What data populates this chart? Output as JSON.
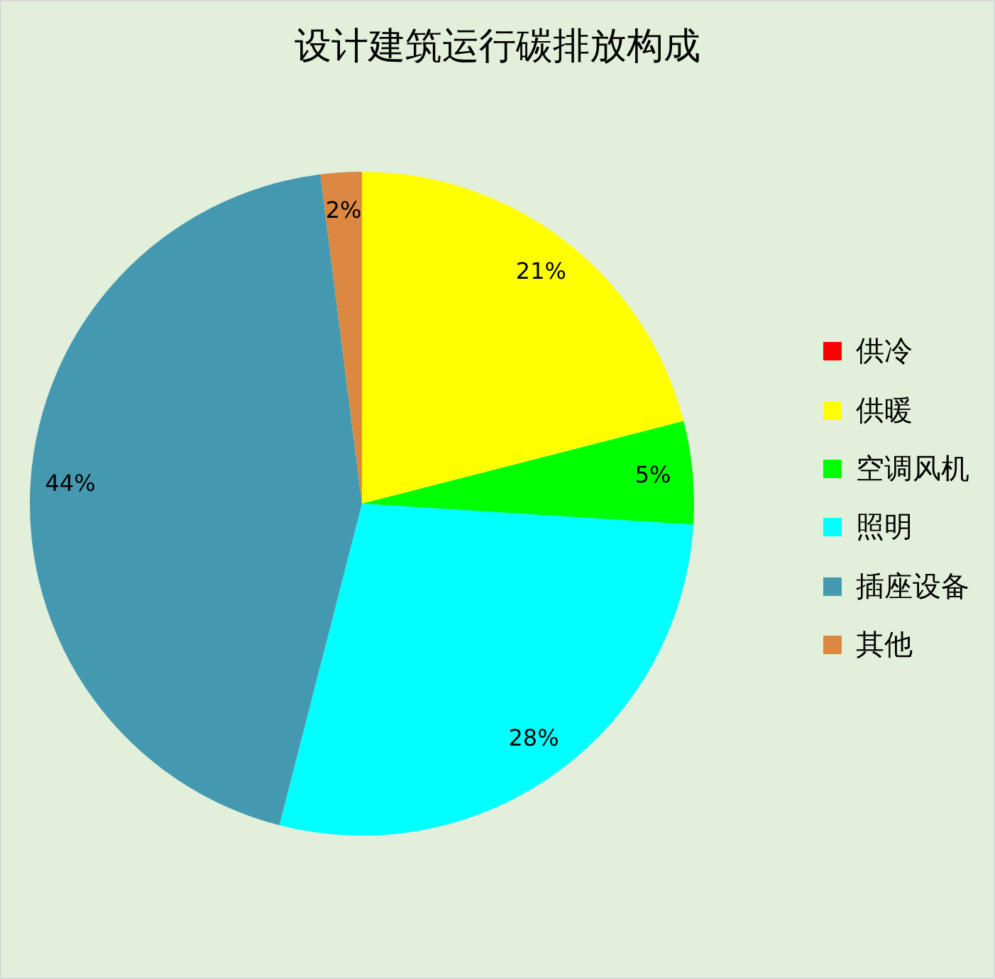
{
  "chart_data": {
    "type": "pie",
    "title": "设计建筑运行碳排放构成",
    "categories": [
      "供冷",
      "供暖",
      "空调风机",
      "照明",
      "插座设备",
      "其他"
    ],
    "values": [
      0,
      21,
      5,
      28,
      44,
      2
    ],
    "colors": [
      "#ff0000",
      "#ffff00",
      "#00ff00",
      "#00ffff",
      "#4499b0",
      "#dc8841"
    ],
    "value_labels": [
      null,
      "21%",
      "5%",
      "28%",
      "44%",
      "2%"
    ],
    "legend": "right"
  }
}
